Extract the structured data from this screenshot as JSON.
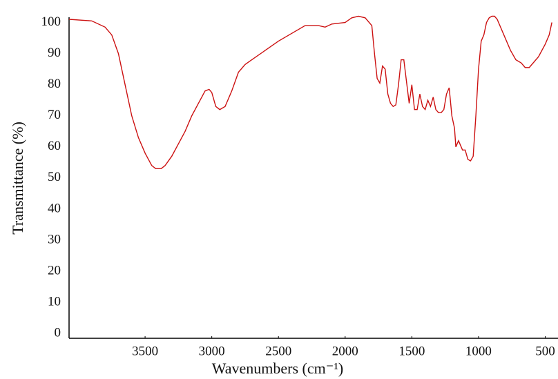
{
  "chart_data": {
    "type": "line",
    "xlabel": "Wavenumbers (cm⁻¹)",
    "ylabel": "Transmittance (%)",
    "xlim": [
      4070,
      430
    ],
    "ylim": [
      -1.5,
      103
    ],
    "xticks": [
      3500,
      3000,
      2500,
      2000,
      1500,
      1000,
      500
    ],
    "yticks": [
      0,
      10,
      20,
      30,
      40,
      50,
      60,
      70,
      80,
      90,
      100
    ],
    "grid": false,
    "series": [
      {
        "color": "#cc1111",
        "x": [
          4070,
          3900,
          3800,
          3750,
          3700,
          3650,
          3600,
          3550,
          3500,
          3450,
          3420,
          3380,
          3350,
          3300,
          3250,
          3200,
          3150,
          3100,
          3050,
          3020,
          3000,
          2970,
          2940,
          2900,
          2850,
          2800,
          2750,
          2700,
          2600,
          2500,
          2400,
          2300,
          2200,
          2150,
          2100,
          2000,
          1950,
          1900,
          1850,
          1800,
          1780,
          1760,
          1740,
          1720,
          1700,
          1680,
          1660,
          1640,
          1620,
          1600,
          1580,
          1560,
          1540,
          1520,
          1500,
          1480,
          1460,
          1440,
          1420,
          1400,
          1380,
          1360,
          1340,
          1320,
          1300,
          1280,
          1260,
          1240,
          1220,
          1200,
          1180,
          1170,
          1150,
          1120,
          1100,
          1080,
          1060,
          1040,
          1020,
          1000,
          980,
          960,
          940,
          920,
          900,
          880,
          860,
          840,
          800,
          760,
          720,
          680,
          650,
          620,
          590,
          550,
          500,
          470,
          450
        ],
        "values": [
          101,
          100.5,
          98.5,
          96,
          90,
          80,
          70,
          63,
          58,
          54,
          53,
          53,
          54,
          57,
          61,
          65,
          70,
          74,
          78,
          78.5,
          77.5,
          73,
          72,
          73,
          78,
          84,
          86.5,
          88,
          91,
          94,
          96.5,
          99,
          99,
          98.5,
          99.5,
          100,
          101.5,
          102,
          101.5,
          99,
          90,
          82,
          80.5,
          86,
          85,
          77,
          74,
          73,
          73.5,
          80,
          88,
          88,
          81,
          74,
          80,
          72,
          72,
          77,
          73,
          72,
          75,
          73,
          76,
          72,
          71,
          71,
          72,
          77,
          79,
          70,
          66,
          60,
          62,
          59,
          59,
          56,
          55.5,
          57,
          70,
          85,
          94,
          96,
          100,
          101.5,
          102,
          102,
          101,
          99,
          95,
          91,
          88,
          87,
          85.5,
          85.5,
          87,
          89,
          93,
          96,
          100
        ]
      }
    ]
  }
}
